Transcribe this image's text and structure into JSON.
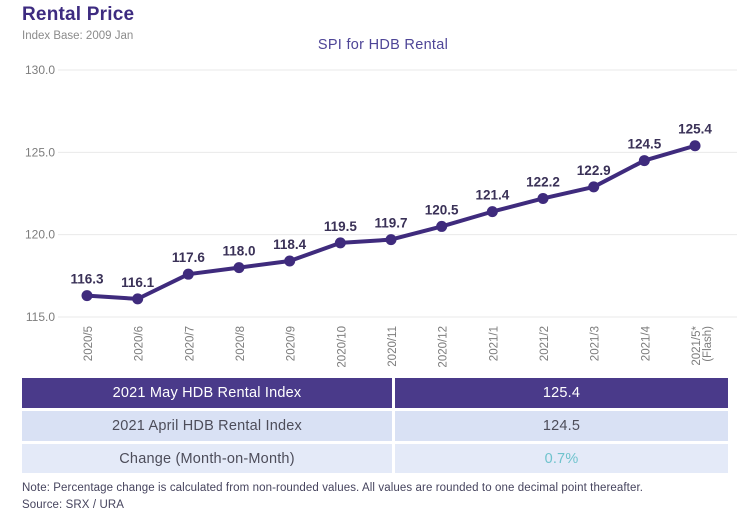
{
  "header": {
    "title": "Rental Price",
    "subtitle": "Index Base: 2009 Jan"
  },
  "chart_data": {
    "type": "line",
    "title": "SPI for HDB Rental",
    "categories": [
      "2020/5",
      "2020/6",
      "2020/7",
      "2020/8",
      "2020/9",
      "2020/10",
      "2020/11",
      "2020/12",
      "2021/1",
      "2021/2",
      "2021/3",
      "2021/4",
      "2021/5*\n(Flash)"
    ],
    "values": [
      116.3,
      116.1,
      117.6,
      118.0,
      118.4,
      119.5,
      119.7,
      120.5,
      121.4,
      122.2,
      122.9,
      124.5,
      125.4
    ],
    "yticks": [
      115.0,
      120.0,
      125.0,
      130.0
    ],
    "ylim": [
      115.0,
      130.0
    ],
    "grid": true,
    "legend": "none",
    "line_color": "#3f2b7d",
    "point_label_color": "#3a3157",
    "axis_label_color": "#7d7d7d",
    "grid_color": "#e9e9e9"
  },
  "table": {
    "rows": [
      {
        "label": "2021 May HDB Rental Index",
        "value": "125.4"
      },
      {
        "label": "2021 April HDB Rental Index",
        "value": "124.5"
      },
      {
        "label": "Change (Month-on-Month)",
        "value": "0.7%"
      }
    ]
  },
  "notes": {
    "note": "Note: Percentage change is calculated from non-rounded values.  All values are rounded to one decimal point thereafter.",
    "source": "Source: SRX / URA"
  },
  "colors": {
    "accent_purple": "#4a3a8a",
    "title_purple": "#3d2b80",
    "chart_title_purple": "#4e4597",
    "teal_change": "#6fc3cd",
    "row_light": "#d9e1f4",
    "row_lighter": "#e4eaf8"
  }
}
